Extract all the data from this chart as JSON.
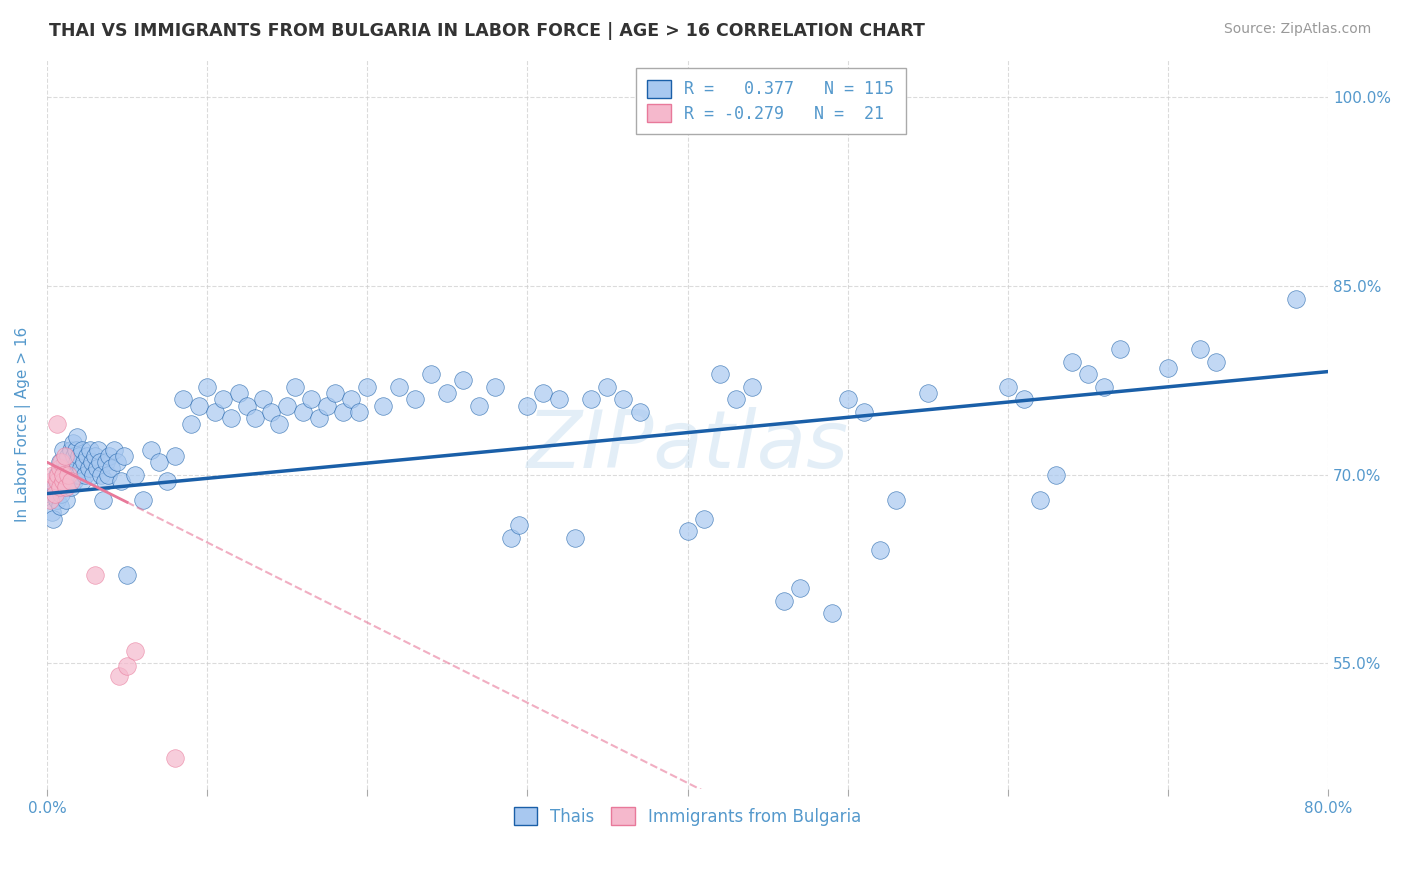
{
  "title": "THAI VS IMMIGRANTS FROM BULGARIA IN LABOR FORCE | AGE > 16 CORRELATION CHART",
  "source": "Source: ZipAtlas.com",
  "ylabel": "In Labor Force | Age > 16",
  "xmin": 0.0,
  "xmax": 0.8,
  "ymin": 0.45,
  "ymax": 1.03,
  "x_tick_positions": [
    0.0,
    0.1,
    0.2,
    0.3,
    0.4,
    0.5,
    0.6,
    0.7,
    0.8
  ],
  "x_tick_labels": [
    "0.0%",
    "",
    "",
    "",
    "",
    "",
    "",
    "",
    "80.0%"
  ],
  "y_tick_positions": [
    0.55,
    0.7,
    0.85,
    1.0
  ],
  "y_tick_labels": [
    "55.0%",
    "70.0%",
    "85.0%",
    "100.0%"
  ],
  "watermark": "ZIPatlas",
  "color_thai": "#a8c8f0",
  "color_bulgaria": "#f5b8cc",
  "line_color_thai": "#1a5fa8",
  "line_color_bulgaria": "#e8799a",
  "background_color": "#ffffff",
  "grid_color": "#cccccc",
  "tick_color": "#5599cc",
  "thai_line_start_y": 0.685,
  "thai_line_end_y": 0.782,
  "bulg_line_start_y": 0.71,
  "bulg_line_end_y": 0.2,
  "thai_points": [
    [
      0.002,
      0.685
    ],
    [
      0.003,
      0.67
    ],
    [
      0.004,
      0.665
    ],
    [
      0.005,
      0.69
    ],
    [
      0.006,
      0.68
    ],
    [
      0.006,
      0.7
    ],
    [
      0.007,
      0.695
    ],
    [
      0.008,
      0.675
    ],
    [
      0.008,
      0.71
    ],
    [
      0.009,
      0.685
    ],
    [
      0.01,
      0.7
    ],
    [
      0.01,
      0.72
    ],
    [
      0.011,
      0.69
    ],
    [
      0.011,
      0.71
    ],
    [
      0.012,
      0.68
    ],
    [
      0.012,
      0.705
    ],
    [
      0.013,
      0.695
    ],
    [
      0.013,
      0.715
    ],
    [
      0.014,
      0.7
    ],
    [
      0.015,
      0.69
    ],
    [
      0.015,
      0.72
    ],
    [
      0.016,
      0.705
    ],
    [
      0.016,
      0.725
    ],
    [
      0.017,
      0.695
    ],
    [
      0.017,
      0.715
    ],
    [
      0.018,
      0.7
    ],
    [
      0.018,
      0.72
    ],
    [
      0.019,
      0.71
    ],
    [
      0.019,
      0.73
    ],
    [
      0.02,
      0.7
    ],
    [
      0.02,
      0.715
    ],
    [
      0.021,
      0.705
    ],
    [
      0.022,
      0.695
    ],
    [
      0.022,
      0.72
    ],
    [
      0.023,
      0.71
    ],
    [
      0.024,
      0.7
    ],
    [
      0.025,
      0.715
    ],
    [
      0.026,
      0.705
    ],
    [
      0.027,
      0.72
    ],
    [
      0.028,
      0.71
    ],
    [
      0.029,
      0.7
    ],
    [
      0.03,
      0.715
    ],
    [
      0.031,
      0.705
    ],
    [
      0.032,
      0.72
    ],
    [
      0.033,
      0.71
    ],
    [
      0.034,
      0.7
    ],
    [
      0.035,
      0.68
    ],
    [
      0.036,
      0.695
    ],
    [
      0.037,
      0.71
    ],
    [
      0.038,
      0.7
    ],
    [
      0.039,
      0.715
    ],
    [
      0.04,
      0.705
    ],
    [
      0.042,
      0.72
    ],
    [
      0.044,
      0.71
    ],
    [
      0.046,
      0.695
    ],
    [
      0.048,
      0.715
    ],
    [
      0.05,
      0.62
    ],
    [
      0.055,
      0.7
    ],
    [
      0.06,
      0.68
    ],
    [
      0.065,
      0.72
    ],
    [
      0.07,
      0.71
    ],
    [
      0.075,
      0.695
    ],
    [
      0.08,
      0.715
    ],
    [
      0.085,
      0.76
    ],
    [
      0.09,
      0.74
    ],
    [
      0.095,
      0.755
    ],
    [
      0.1,
      0.77
    ],
    [
      0.105,
      0.75
    ],
    [
      0.11,
      0.76
    ],
    [
      0.115,
      0.745
    ],
    [
      0.12,
      0.765
    ],
    [
      0.125,
      0.755
    ],
    [
      0.13,
      0.745
    ],
    [
      0.135,
      0.76
    ],
    [
      0.14,
      0.75
    ],
    [
      0.145,
      0.74
    ],
    [
      0.15,
      0.755
    ],
    [
      0.155,
      0.77
    ],
    [
      0.16,
      0.75
    ],
    [
      0.165,
      0.76
    ],
    [
      0.17,
      0.745
    ],
    [
      0.175,
      0.755
    ],
    [
      0.18,
      0.765
    ],
    [
      0.185,
      0.75
    ],
    [
      0.19,
      0.76
    ],
    [
      0.195,
      0.75
    ],
    [
      0.2,
      0.77
    ],
    [
      0.21,
      0.755
    ],
    [
      0.22,
      0.77
    ],
    [
      0.23,
      0.76
    ],
    [
      0.24,
      0.78
    ],
    [
      0.25,
      0.765
    ],
    [
      0.26,
      0.775
    ],
    [
      0.27,
      0.755
    ],
    [
      0.28,
      0.77
    ],
    [
      0.29,
      0.65
    ],
    [
      0.295,
      0.66
    ],
    [
      0.3,
      0.755
    ],
    [
      0.31,
      0.765
    ],
    [
      0.32,
      0.76
    ],
    [
      0.33,
      0.65
    ],
    [
      0.34,
      0.76
    ],
    [
      0.35,
      0.77
    ],
    [
      0.36,
      0.76
    ],
    [
      0.37,
      0.75
    ],
    [
      0.4,
      0.655
    ],
    [
      0.41,
      0.665
    ],
    [
      0.42,
      0.78
    ],
    [
      0.43,
      0.76
    ],
    [
      0.44,
      0.77
    ],
    [
      0.46,
      0.6
    ],
    [
      0.47,
      0.61
    ],
    [
      0.49,
      0.59
    ],
    [
      0.5,
      0.76
    ],
    [
      0.51,
      0.75
    ],
    [
      0.52,
      0.64
    ],
    [
      0.53,
      0.68
    ],
    [
      0.55,
      0.765
    ],
    [
      0.6,
      0.77
    ],
    [
      0.61,
      0.76
    ],
    [
      0.62,
      0.68
    ],
    [
      0.63,
      0.7
    ],
    [
      0.64,
      0.79
    ],
    [
      0.65,
      0.78
    ],
    [
      0.66,
      0.77
    ],
    [
      0.67,
      0.8
    ],
    [
      0.7,
      0.785
    ],
    [
      0.72,
      0.8
    ],
    [
      0.73,
      0.79
    ],
    [
      0.78,
      0.84
    ]
  ],
  "bulgaria_points": [
    [
      0.002,
      0.68
    ],
    [
      0.003,
      0.695
    ],
    [
      0.004,
      0.7
    ],
    [
      0.005,
      0.685
    ],
    [
      0.006,
      0.695
    ],
    [
      0.006,
      0.74
    ],
    [
      0.007,
      0.7
    ],
    [
      0.008,
      0.69
    ],
    [
      0.008,
      0.705
    ],
    [
      0.009,
      0.71
    ],
    [
      0.01,
      0.695
    ],
    [
      0.01,
      0.7
    ],
    [
      0.011,
      0.715
    ],
    [
      0.012,
      0.69
    ],
    [
      0.013,
      0.7
    ],
    [
      0.015,
      0.695
    ],
    [
      0.03,
      0.62
    ],
    [
      0.045,
      0.54
    ],
    [
      0.05,
      0.548
    ],
    [
      0.055,
      0.56
    ],
    [
      0.08,
      0.475
    ]
  ]
}
